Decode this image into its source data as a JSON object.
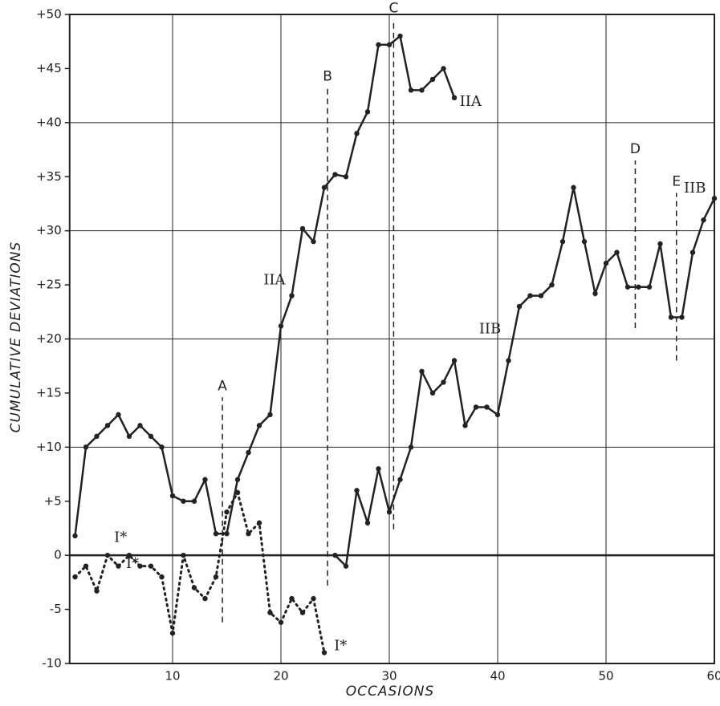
{
  "chart_data": {
    "type": "line",
    "x_label": "OCCASIONS",
    "y_label": "CUMULATIVE DEVIATIONS",
    "xlim": [
      0.5,
      60
    ],
    "ylim": [
      -10,
      50
    ],
    "xticks": [
      10,
      20,
      30,
      40,
      50,
      60
    ],
    "yticks": [
      {
        "value": 50,
        "label": "+50"
      },
      {
        "value": 45,
        "label": "+45"
      },
      {
        "value": 40,
        "label": "+40"
      },
      {
        "value": 35,
        "label": "+35"
      },
      {
        "value": 30,
        "label": "+30"
      },
      {
        "value": 25,
        "label": "+25"
      },
      {
        "value": 20,
        "label": "+20"
      },
      {
        "value": 15,
        "label": "+15"
      },
      {
        "value": 10,
        "label": "+10"
      },
      {
        "value": 5,
        "label": "+5"
      },
      0,
      -5,
      -10
    ],
    "grid": true,
    "series": [
      {
        "name": "IIA",
        "color": "#222",
        "line_style": "solid",
        "x": [
          1,
          2,
          3,
          4,
          5,
          6,
          7,
          8,
          9,
          10,
          11,
          12,
          13,
          14,
          15,
          16,
          17,
          18,
          19,
          20,
          21,
          22,
          23,
          24,
          25,
          26,
          27,
          28,
          29,
          30,
          31,
          32,
          33,
          34,
          35,
          36
        ],
        "values": [
          1.8,
          10,
          11,
          12,
          13,
          11,
          12,
          11,
          10,
          5.5,
          5,
          5,
          7,
          2,
          2,
          7,
          9.5,
          12,
          13,
          21.2,
          24,
          30.2,
          29,
          34,
          35.2,
          35,
          39,
          41,
          47.2,
          47.2,
          48,
          43,
          43,
          44,
          45,
          42.3
        ]
      },
      {
        "name": "IIB",
        "color": "#222",
        "line_style": "solid",
        "x": [
          25,
          26,
          27,
          28,
          29,
          30,
          31,
          32,
          33,
          34,
          35,
          36,
          37,
          38,
          39,
          40,
          41,
          42,
          43,
          44,
          45,
          46,
          47,
          48,
          49,
          50,
          51,
          52,
          53,
          54,
          55,
          56,
          57,
          58,
          59,
          60
        ],
        "values": [
          0,
          -1,
          6,
          3,
          8,
          4,
          7,
          10,
          17,
          15,
          16,
          18,
          12,
          13.7,
          13.7,
          13,
          18,
          23,
          24,
          24,
          25,
          29,
          34,
          29,
          24.2,
          27,
          28,
          24.8,
          24.8,
          24.8,
          28.8,
          22,
          22,
          28,
          31,
          33
        ]
      },
      {
        "name": "I*",
        "color": "#222",
        "line_style": "dotted",
        "x": [
          1,
          2,
          3,
          4,
          5,
          6,
          7,
          8,
          9,
          10,
          11,
          12,
          13,
          14,
          15,
          16,
          17,
          18,
          19,
          20,
          21,
          22,
          23,
          24
        ],
        "values": [
          -2,
          -1,
          -3.3,
          0,
          -1,
          0,
          -1,
          -1,
          -2,
          -7.2,
          0,
          -3,
          -4,
          -2,
          4,
          5.8,
          2,
          3,
          -5.3,
          -6.2,
          -4,
          -5.3,
          -4,
          -9
        ]
      }
    ],
    "series_labels": [
      {
        "text": "IIA",
        "x": 37.5,
        "y": 41.9
      },
      {
        "text": "IIA",
        "x": 19.4,
        "y": 25.4
      },
      {
        "text": "IIB",
        "x": 39.3,
        "y": 20.9
      },
      {
        "text": "IIB",
        "x": 58.2,
        "y": 33.9
      },
      {
        "text": "I*",
        "x": 5.2,
        "y": 1.6
      },
      {
        "text": "I*",
        "x": 6.3,
        "y": -0.8
      },
      {
        "text": "I*",
        "x": 25.5,
        "y": -8.4
      }
    ],
    "markers": [
      {
        "label": "A",
        "x": 14.6,
        "y1": -6.2,
        "y2": 14.6
      },
      {
        "label": "B",
        "x": 24.3,
        "y1": -2.8,
        "y2": 43.2
      },
      {
        "label": "C",
        "x": 30.4,
        "y1": 2.4,
        "y2": 49.5
      },
      {
        "label": "D",
        "x": 52.7,
        "y1": 21,
        "y2": 36.5
      },
      {
        "label": "E",
        "x": 56.5,
        "y1": 18,
        "y2": 33.5
      }
    ]
  }
}
